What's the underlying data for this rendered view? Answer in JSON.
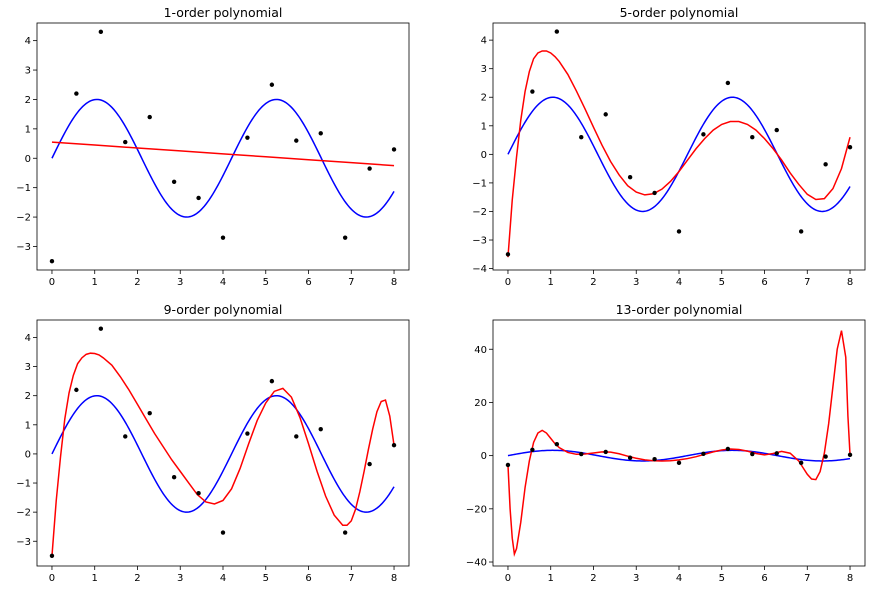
{
  "chart_data": [
    {
      "type": "line",
      "title": "1-order polynomial",
      "xlim": [
        0,
        8
      ],
      "ylim": [
        -3.8,
        4.6
      ],
      "xticks": [
        0,
        1,
        2,
        3,
        4,
        5,
        6,
        7,
        8
      ],
      "yticks": [
        -3,
        -2,
        -1,
        0,
        1,
        2,
        3,
        4
      ],
      "points": {
        "x": [
          0,
          0.571,
          1.143,
          1.714,
          2.286,
          2.857,
          3.429,
          4.0,
          4.571,
          5.143,
          5.714,
          6.286,
          6.857,
          7.429,
          8.0
        ],
        "y": [
          -3.5,
          2.2,
          4.3,
          0.55,
          1.4,
          -0.8,
          -1.35,
          -2.7,
          0.7,
          2.5,
          0.6,
          0.85,
          -2.7,
          -0.35,
          0.3
        ]
      },
      "true_curve": {
        "type": "sine",
        "amplitude": 2,
        "period": 4.2,
        "color": "#0000ff"
      },
      "series": [
        {
          "color": "#ff0000",
          "x": [
            0,
            1,
            2,
            3,
            4,
            5,
            6,
            7,
            8
          ],
          "y": [
            0.55,
            0.45,
            0.35,
            0.25,
            0.15,
            0.05,
            -0.05,
            -0.15,
            -0.25
          ]
        }
      ]
    },
    {
      "type": "line",
      "title": "5-order polynomial",
      "xlim": [
        0,
        8
      ],
      "ylim": [
        -4.05,
        4.6
      ],
      "xticks": [
        0,
        1,
        2,
        3,
        4,
        5,
        6,
        7,
        8
      ],
      "yticks": [
        -4,
        -3,
        -2,
        -1,
        0,
        1,
        2,
        3,
        4
      ],
      "points": {
        "x": [
          0,
          0.571,
          1.143,
          1.714,
          2.286,
          2.857,
          3.429,
          4.0,
          4.571,
          5.143,
          5.714,
          6.286,
          6.857,
          7.429,
          8.0
        ],
        "y": [
          -3.5,
          2.2,
          4.3,
          0.6,
          1.4,
          -0.8,
          -1.35,
          -2.7,
          0.7,
          2.5,
          0.6,
          0.85,
          -2.7,
          -0.35,
          0.25
        ]
      },
      "true_curve": {
        "type": "sine",
        "amplitude": 2,
        "period": 4.2,
        "color": "#0000ff"
      },
      "series": [
        {
          "color": "#ff0000",
          "x": [
            0,
            0.1,
            0.2,
            0.3,
            0.4,
            0.5,
            0.6,
            0.7,
            0.8,
            0.9,
            1.0,
            1.1,
            1.2,
            1.4,
            1.6,
            1.8,
            2.0,
            2.2,
            2.4,
            2.6,
            2.8,
            3.0,
            3.2,
            3.4,
            3.6,
            3.8,
            4.0,
            4.2,
            4.4,
            4.6,
            4.8,
            5.0,
            5.2,
            5.4,
            5.6,
            5.8,
            6.0,
            6.2,
            6.4,
            6.6,
            6.8,
            7.0,
            7.2,
            7.4,
            7.6,
            7.8,
            8.0
          ],
          "y": [
            -3.6,
            -1.6,
            -0.1,
            1.2,
            2.2,
            2.9,
            3.35,
            3.55,
            3.62,
            3.62,
            3.55,
            3.42,
            3.25,
            2.8,
            2.22,
            1.6,
            0.95,
            0.32,
            -0.25,
            -0.72,
            -1.1,
            -1.32,
            -1.42,
            -1.38,
            -1.22,
            -0.95,
            -0.6,
            -0.2,
            0.2,
            0.55,
            0.85,
            1.05,
            1.15,
            1.15,
            1.05,
            0.85,
            0.55,
            0.2,
            -0.2,
            -0.65,
            -1.05,
            -1.4,
            -1.58,
            -1.55,
            -1.2,
            -0.5,
            0.6
          ]
        }
      ]
    },
    {
      "type": "line",
      "title": "9-order polynomial",
      "xlim": [
        0,
        8
      ],
      "ylim": [
        -3.85,
        4.6
      ],
      "xticks": [
        0,
        1,
        2,
        3,
        4,
        5,
        6,
        7,
        8
      ],
      "yticks": [
        -3,
        -2,
        -1,
        0,
        1,
        2,
        3,
        4
      ],
      "points": {
        "x": [
          0,
          0.571,
          1.143,
          1.714,
          2.286,
          2.857,
          3.429,
          4.0,
          4.571,
          5.143,
          5.714,
          6.286,
          6.857,
          7.429,
          8.0
        ],
        "y": [
          -3.5,
          2.2,
          4.3,
          0.6,
          1.4,
          -0.8,
          -1.35,
          -2.7,
          0.7,
          2.5,
          0.6,
          0.85,
          -2.7,
          -0.35,
          0.3
        ]
      },
      "true_curve": {
        "type": "sine",
        "amplitude": 2,
        "period": 4.2,
        "color": "#0000ff"
      },
      "series": [
        {
          "color": "#ff0000",
          "x": [
            0,
            0.1,
            0.2,
            0.3,
            0.4,
            0.5,
            0.6,
            0.7,
            0.8,
            0.9,
            1.0,
            1.1,
            1.2,
            1.4,
            1.6,
            1.8,
            2.0,
            2.2,
            2.4,
            2.6,
            2.8,
            3.0,
            3.2,
            3.4,
            3.6,
            3.8,
            4.0,
            4.2,
            4.4,
            4.6,
            4.8,
            5.0,
            5.2,
            5.4,
            5.6,
            5.8,
            6.0,
            6.2,
            6.4,
            6.6,
            6.8,
            6.9,
            7.0,
            7.1,
            7.2,
            7.3,
            7.4,
            7.5,
            7.6,
            7.7,
            7.8,
            7.9,
            8.0
          ],
          "y": [
            -3.5,
            -1.6,
            -0.1,
            1.2,
            2.1,
            2.7,
            3.1,
            3.3,
            3.42,
            3.46,
            3.45,
            3.4,
            3.3,
            3.05,
            2.65,
            2.2,
            1.7,
            1.2,
            0.7,
            0.25,
            -0.2,
            -0.6,
            -1.0,
            -1.4,
            -1.65,
            -1.72,
            -1.6,
            -1.2,
            -0.5,
            0.35,
            1.15,
            1.75,
            2.15,
            2.25,
            1.95,
            1.25,
            0.35,
            -0.6,
            -1.45,
            -2.1,
            -2.45,
            -2.45,
            -2.3,
            -1.9,
            -1.3,
            -0.6,
            0.15,
            0.85,
            1.45,
            1.8,
            1.85,
            1.3,
            0.3
          ]
        }
      ]
    },
    {
      "type": "line",
      "title": "13-order polynomial",
      "xlim": [
        0,
        8
      ],
      "ylim": [
        -41.5,
        51
      ],
      "xticks": [
        0,
        1,
        2,
        3,
        4,
        5,
        6,
        7,
        8
      ],
      "yticks": [
        -40,
        -20,
        0,
        20,
        40
      ],
      "points": {
        "x": [
          0,
          0.571,
          1.143,
          1.714,
          2.286,
          2.857,
          3.429,
          4.0,
          4.571,
          5.143,
          5.714,
          6.286,
          6.857,
          7.429,
          8.0
        ],
        "y": [
          -3.5,
          2.2,
          4.3,
          0.6,
          1.4,
          -0.8,
          -1.35,
          -2.7,
          0.7,
          2.5,
          0.6,
          0.85,
          -2.7,
          -0.35,
          0.3
        ]
      },
      "true_curve": {
        "type": "sine",
        "amplitude": 2,
        "period": 4.2,
        "color": "#0000ff"
      },
      "series": [
        {
          "color": "#ff0000",
          "x": [
            0,
            0.05,
            0.1,
            0.15,
            0.2,
            0.3,
            0.4,
            0.5,
            0.6,
            0.7,
            0.8,
            0.9,
            1.0,
            1.1,
            1.2,
            1.4,
            1.6,
            1.8,
            2.0,
            2.2,
            2.4,
            2.6,
            2.8,
            3.0,
            3.2,
            3.4,
            3.6,
            3.8,
            4.0,
            4.2,
            4.4,
            4.6,
            4.8,
            5.0,
            5.2,
            5.4,
            5.6,
            5.8,
            6.0,
            6.2,
            6.4,
            6.6,
            6.8,
            6.9,
            7.0,
            7.1,
            7.2,
            7.3,
            7.4,
            7.5,
            7.6,
            7.7,
            7.8,
            7.9,
            7.95,
            8.0
          ],
          "y": [
            -3.5,
            -20,
            -31,
            -37,
            -35,
            -25,
            -12,
            -2,
            5,
            8.5,
            9.5,
            8.5,
            6.5,
            4.5,
            3.0,
            1.2,
            0.5,
            0.6,
            1.0,
            1.4,
            1.3,
            0.7,
            -0.2,
            -1.0,
            -1.6,
            -1.9,
            -2.0,
            -1.9,
            -1.6,
            -1.1,
            -0.4,
            0.5,
            1.4,
            2.1,
            2.5,
            2.3,
            1.7,
            0.8,
            0.3,
            0.8,
            1.6,
            0.9,
            -2.0,
            -4.5,
            -7.0,
            -8.8,
            -9.0,
            -6.0,
            1.0,
            12.0,
            26.0,
            40.0,
            47.0,
            37.0,
            15.0,
            0.3
          ]
        }
      ]
    }
  ]
}
